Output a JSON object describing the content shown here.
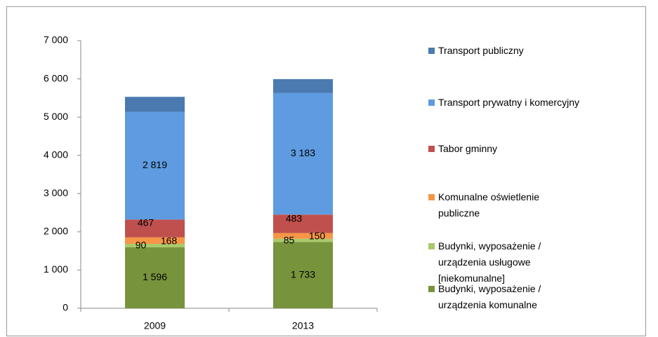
{
  "chart_data": {
    "type": "stacked_bar",
    "categories": [
      "2009",
      "2013"
    ],
    "series": [
      {
        "name": "Budynki, wyposażenie / urządzenia komunalne",
        "color": "#77933c",
        "values": [
          1596,
          1733
        ],
        "value_labels": [
          "1 596",
          "1 733"
        ]
      },
      {
        "name": "Budynki, wyposażenie / urządzenia usługowe [niekomunalne]",
        "color": "#a9c96a",
        "values": [
          90,
          85
        ]
      },
      {
        "name": "Komunalne oświetlenie publiczne",
        "color": "#f79646",
        "values": [
          168,
          150
        ]
      },
      {
        "name": "Tabor gminny",
        "color": "#c0504d",
        "values": [
          467,
          483
        ]
      },
      {
        "name": "Transport prywatny i komercyjny",
        "color": "#5e9be0",
        "values": [
          2819,
          3183
        ],
        "value_labels": [
          "2 819",
          "3 183"
        ]
      },
      {
        "name": "Transport publiczny",
        "color": "#4a7ab0",
        "values": [
          390,
          360
        ]
      }
    ],
    "labeled_series": [
      0,
      1,
      2,
      3,
      4
    ],
    "ylim": [
      0,
      7000
    ],
    "yticks": [
      0,
      {
        "value": 1000,
        "label": "1 000"
      },
      {
        "value": 2000,
        "label": "2 000"
      },
      {
        "value": 3000,
        "label": "3 000"
      },
      {
        "value": 4000,
        "label": "4 000"
      },
      {
        "value": 5000,
        "label": "5 000"
      },
      {
        "value": 6000,
        "label": "6 000"
      },
      {
        "value": 7000,
        "label": "7 000"
      }
    ]
  }
}
